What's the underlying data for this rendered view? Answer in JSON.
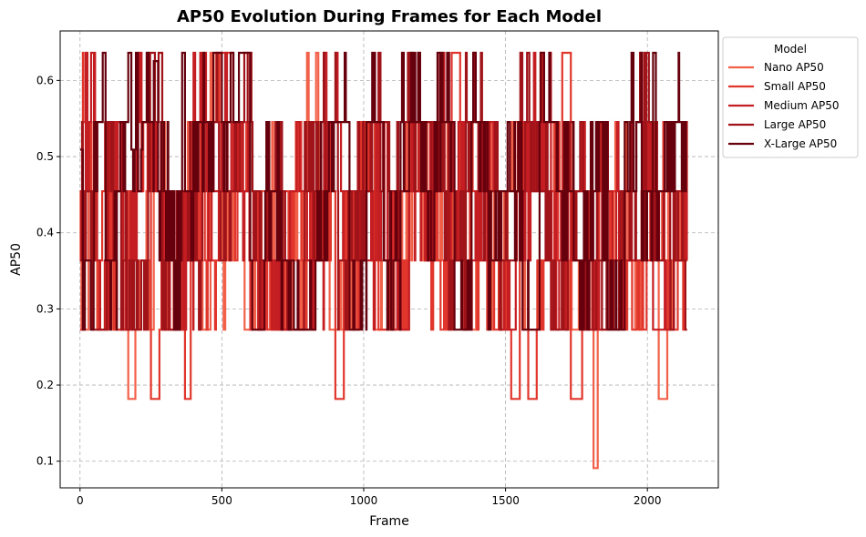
{
  "chart_data": {
    "type": "line",
    "title": "AP50 Evolution During Frames for Each Model",
    "xlabel": "Frame",
    "ylabel": "AP50",
    "xlim": [
      -70,
      2250
    ],
    "ylim": [
      0.065,
      0.665
    ],
    "xticks": [
      0,
      500,
      1000,
      1500,
      2000
    ],
    "yticks": [
      0.1,
      0.2,
      0.3,
      0.4,
      0.5,
      0.6
    ],
    "grid": true,
    "grid_style": "dashed",
    "legend": {
      "title": "Model",
      "placement": "outside-top-right"
    },
    "levels": [
      0.0909,
      0.1818,
      0.2727,
      0.3636,
      0.4545,
      0.5454,
      0.6363
    ],
    "series": [
      {
        "name": "Nano AP50",
        "color": "#f26049",
        "segments": [
          [
            0,
            5,
            0.3636
          ],
          [
            5,
            30,
            0.2727
          ],
          [
            30,
            60,
            0.4545
          ],
          [
            60,
            90,
            0.2727
          ],
          [
            90,
            130,
            0.3636
          ],
          [
            130,
            170,
            0.2727
          ],
          [
            170,
            195,
            0.1818
          ],
          [
            195,
            210,
            0.2727
          ],
          [
            210,
            260,
            0.3636
          ],
          [
            260,
            300,
            0.4545
          ],
          [
            300,
            350,
            0.2727
          ],
          [
            350,
            380,
            0.3636
          ],
          [
            380,
            420,
            0.4545
          ],
          [
            420,
            460,
            0.2727
          ],
          [
            460,
            500,
            0.5454
          ],
          [
            500,
            540,
            0.3636
          ],
          [
            540,
            580,
            0.4545
          ],
          [
            580,
            640,
            0.2727
          ],
          [
            640,
            700,
            0.4545
          ],
          [
            700,
            750,
            0.2727
          ],
          [
            750,
            800,
            0.3636
          ],
          [
            800,
            840,
            0.5454
          ],
          [
            840,
            880,
            0.4545
          ],
          [
            880,
            930,
            0.2727
          ],
          [
            930,
            980,
            0.3636
          ],
          [
            980,
            1040,
            0.4545
          ],
          [
            1040,
            1090,
            0.2727
          ],
          [
            1090,
            1150,
            0.3636
          ],
          [
            1150,
            1230,
            0.4545
          ],
          [
            1230,
            1290,
            0.3636
          ],
          [
            1290,
            1350,
            0.4545
          ],
          [
            1350,
            1400,
            0.2727
          ],
          [
            1400,
            1450,
            0.4545
          ],
          [
            1450,
            1500,
            0.3636
          ],
          [
            1500,
            1560,
            0.4545
          ],
          [
            1560,
            1610,
            0.2727
          ],
          [
            1610,
            1660,
            0.3636
          ],
          [
            1660,
            1720,
            0.4545
          ],
          [
            1720,
            1780,
            0.2727
          ],
          [
            1780,
            1810,
            0.3636
          ],
          [
            1810,
            1825,
            0.0909
          ],
          [
            1825,
            1870,
            0.2727
          ],
          [
            1870,
            1930,
            0.4545
          ],
          [
            1930,
            1990,
            0.3636
          ],
          [
            1990,
            2040,
            0.4545
          ],
          [
            2040,
            2070,
            0.1818
          ],
          [
            2070,
            2120,
            0.3636
          ],
          [
            2120,
            2140,
            0.4545
          ]
        ]
      },
      {
        "name": "Small AP50",
        "color": "#e0362c",
        "segments": [
          [
            0,
            10,
            0.2727
          ],
          [
            10,
            40,
            0.5454
          ],
          [
            40,
            80,
            0.3636
          ],
          [
            80,
            120,
            0.4545
          ],
          [
            120,
            160,
            0.2727
          ],
          [
            160,
            200,
            0.3636
          ],
          [
            200,
            250,
            0.4545
          ],
          [
            250,
            280,
            0.1818
          ],
          [
            280,
            330,
            0.3636
          ],
          [
            330,
            370,
            0.2727
          ],
          [
            370,
            390,
            0.1818
          ],
          [
            390,
            440,
            0.4545
          ],
          [
            440,
            490,
            0.3636
          ],
          [
            490,
            540,
            0.6363
          ],
          [
            540,
            600,
            0.4545
          ],
          [
            600,
            660,
            0.3636
          ],
          [
            660,
            720,
            0.2727
          ],
          [
            720,
            780,
            0.4545
          ],
          [
            780,
            840,
            0.3636
          ],
          [
            840,
            900,
            0.4545
          ],
          [
            900,
            930,
            0.1818
          ],
          [
            930,
            990,
            0.3636
          ],
          [
            990,
            1050,
            0.4545
          ],
          [
            1050,
            1100,
            0.2727
          ],
          [
            1100,
            1160,
            0.3636
          ],
          [
            1160,
            1230,
            0.4545
          ],
          [
            1230,
            1310,
            0.3636
          ],
          [
            1310,
            1340,
            0.6363
          ],
          [
            1340,
            1400,
            0.4545
          ],
          [
            1400,
            1460,
            0.3636
          ],
          [
            1460,
            1520,
            0.2727
          ],
          [
            1520,
            1550,
            0.1818
          ],
          [
            1550,
            1580,
            0.4545
          ],
          [
            1580,
            1610,
            0.1818
          ],
          [
            1610,
            1660,
            0.3636
          ],
          [
            1660,
            1700,
            0.4545
          ],
          [
            1700,
            1730,
            0.6363
          ],
          [
            1730,
            1770,
            0.1818
          ],
          [
            1770,
            1830,
            0.3636
          ],
          [
            1830,
            1890,
            0.4545
          ],
          [
            1890,
            1950,
            0.3636
          ],
          [
            1950,
            2010,
            0.2727
          ],
          [
            2010,
            2060,
            0.4545
          ],
          [
            2060,
            2100,
            0.2727
          ],
          [
            2100,
            2140,
            0.3636
          ]
        ]
      },
      {
        "name": "Medium AP50",
        "color": "#c41e22",
        "segments": [
          [
            0,
            20,
            0.3636
          ],
          [
            20,
            60,
            0.5454
          ],
          [
            60,
            100,
            0.2727
          ],
          [
            100,
            150,
            0.4545
          ],
          [
            150,
            200,
            0.3636
          ],
          [
            200,
            250,
            0.5454
          ],
          [
            250,
            300,
            0.4545
          ],
          [
            300,
            350,
            0.2727
          ],
          [
            350,
            400,
            0.3636
          ],
          [
            400,
            450,
            0.5454
          ],
          [
            450,
            500,
            0.4545
          ],
          [
            500,
            560,
            0.5454
          ],
          [
            560,
            620,
            0.4545
          ],
          [
            620,
            680,
            0.3636
          ],
          [
            680,
            740,
            0.2727
          ],
          [
            740,
            800,
            0.4545
          ],
          [
            800,
            860,
            0.3636
          ],
          [
            860,
            920,
            0.5454
          ],
          [
            920,
            980,
            0.4545
          ],
          [
            980,
            1040,
            0.3636
          ],
          [
            1040,
            1100,
            0.4545
          ],
          [
            1100,
            1160,
            0.2727
          ],
          [
            1160,
            1240,
            0.4545
          ],
          [
            1240,
            1300,
            0.5454
          ],
          [
            1300,
            1360,
            0.4545
          ],
          [
            1360,
            1420,
            0.3636
          ],
          [
            1420,
            1480,
            0.4545
          ],
          [
            1480,
            1540,
            0.2727
          ],
          [
            1540,
            1600,
            0.4545
          ],
          [
            1600,
            1660,
            0.5454
          ],
          [
            1660,
            1720,
            0.3636
          ],
          [
            1720,
            1780,
            0.4545
          ],
          [
            1780,
            1840,
            0.2727
          ],
          [
            1840,
            1900,
            0.4545
          ],
          [
            1900,
            1960,
            0.3636
          ],
          [
            1960,
            2020,
            0.4545
          ],
          [
            2020,
            2080,
            0.2727
          ],
          [
            2080,
            2140,
            0.4545
          ]
        ]
      },
      {
        "name": "Large AP50",
        "color": "#a01319",
        "segments": [
          [
            0,
            15,
            0.4545
          ],
          [
            15,
            55,
            0.3636
          ],
          [
            55,
            95,
            0.2727
          ],
          [
            95,
            140,
            0.4545
          ],
          [
            140,
            190,
            0.3636
          ],
          [
            190,
            240,
            0.2727
          ],
          [
            240,
            290,
            0.5454
          ],
          [
            290,
            340,
            0.2727
          ],
          [
            340,
            390,
            0.4545
          ],
          [
            390,
            440,
            0.3636
          ],
          [
            440,
            490,
            0.5454
          ],
          [
            490,
            550,
            0.4545
          ],
          [
            550,
            610,
            0.5454
          ],
          [
            610,
            670,
            0.3636
          ],
          [
            670,
            730,
            0.4545
          ],
          [
            730,
            790,
            0.2727
          ],
          [
            790,
            850,
            0.4545
          ],
          [
            850,
            910,
            0.5454
          ],
          [
            910,
            970,
            0.3636
          ],
          [
            970,
            1030,
            0.4545
          ],
          [
            1030,
            1090,
            0.5454
          ],
          [
            1090,
            1150,
            0.4545
          ],
          [
            1150,
            1240,
            0.5454
          ],
          [
            1240,
            1300,
            0.4545
          ],
          [
            1300,
            1360,
            0.3636
          ],
          [
            1360,
            1420,
            0.5454
          ],
          [
            1420,
            1480,
            0.4545
          ],
          [
            1480,
            1540,
            0.3636
          ],
          [
            1540,
            1600,
            0.5454
          ],
          [
            1600,
            1660,
            0.4545
          ],
          [
            1660,
            1720,
            0.2727
          ],
          [
            1720,
            1780,
            0.4545
          ],
          [
            1780,
            1840,
            0.3636
          ],
          [
            1840,
            1900,
            0.2727
          ],
          [
            1900,
            1960,
            0.4545
          ],
          [
            1960,
            2020,
            0.5454
          ],
          [
            2020,
            2080,
            0.4545
          ],
          [
            2080,
            2140,
            0.3636
          ]
        ]
      },
      {
        "name": "X-Large AP50",
        "color": "#67000d",
        "segments": [
          [
            0,
            10,
            0.5091
          ],
          [
            10,
            50,
            0.3636
          ],
          [
            50,
            90,
            0.5454
          ],
          [
            90,
            130,
            0.3636
          ],
          [
            130,
            170,
            0.4545
          ],
          [
            170,
            220,
            0.5091
          ],
          [
            220,
            260,
            0.5454
          ],
          [
            260,
            275,
            0.6254
          ],
          [
            275,
            320,
            0.4545
          ],
          [
            320,
            360,
            0.3636
          ],
          [
            360,
            370,
            0.6363
          ],
          [
            370,
            420,
            0.4545
          ],
          [
            420,
            470,
            0.5454
          ],
          [
            470,
            500,
            0.6363
          ],
          [
            500,
            560,
            0.5454
          ],
          [
            560,
            600,
            0.6363
          ],
          [
            600,
            650,
            0.2727
          ],
          [
            650,
            710,
            0.4545
          ],
          [
            710,
            770,
            0.3636
          ],
          [
            770,
            830,
            0.2727
          ],
          [
            830,
            890,
            0.4545
          ],
          [
            890,
            950,
            0.5454
          ],
          [
            950,
            1010,
            0.2727
          ],
          [
            1010,
            1070,
            0.5454
          ],
          [
            1070,
            1130,
            0.3636
          ],
          [
            1130,
            1200,
            0.5454
          ],
          [
            1200,
            1260,
            0.4545
          ],
          [
            1260,
            1320,
            0.5454
          ],
          [
            1320,
            1380,
            0.2727
          ],
          [
            1380,
            1440,
            0.5454
          ],
          [
            1440,
            1500,
            0.3636
          ],
          [
            1500,
            1560,
            0.4545
          ],
          [
            1560,
            1620,
            0.2727
          ],
          [
            1620,
            1680,
            0.5454
          ],
          [
            1680,
            1740,
            0.4545
          ],
          [
            1740,
            1800,
            0.3636
          ],
          [
            1800,
            1860,
            0.4545
          ],
          [
            1860,
            1920,
            0.2727
          ],
          [
            1920,
            1980,
            0.5454
          ],
          [
            1980,
            2020,
            0.4545
          ],
          [
            2020,
            2030,
            0.6363
          ],
          [
            2030,
            2090,
            0.4545
          ],
          [
            2090,
            2140,
            0.5454
          ]
        ]
      }
    ]
  }
}
